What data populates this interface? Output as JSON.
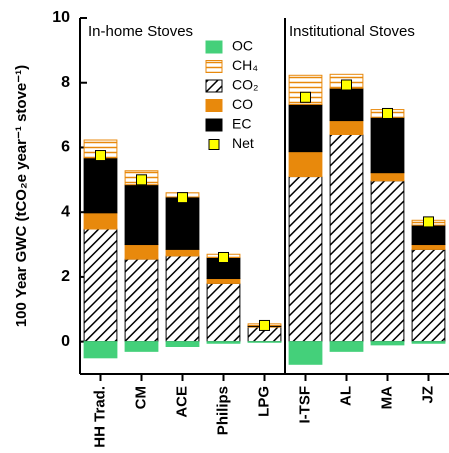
{
  "chart_data": {
    "type": "stacked_bar",
    "y_label": "100 Year GWC (tCO₂e year⁻¹ stove⁻¹)",
    "annotations": [
      "In-home Stoves",
      "Institutional Stoves"
    ],
    "categories": [
      "HH Trad.",
      "CM",
      "ACE",
      "Philips",
      "LPG",
      "I-TSF",
      "AL",
      "MA",
      "JZ"
    ],
    "series": [
      {
        "name": "OC",
        "color": "#44d07a",
        "pattern": "solid",
        "values": [
          -0.5,
          -0.3,
          -0.15,
          -0.05,
          -0.02,
          -0.7,
          -0.3,
          -0.1,
          -0.05
        ]
      },
      {
        "name": "CH₄",
        "color": "#e8890c",
        "pattern": "hlines",
        "values": [
          0.55,
          0.43,
          0.13,
          0.1,
          0.05,
          0.9,
          0.43,
          0.24,
          0.15
        ]
      },
      {
        "name": "CO₂",
        "color": "#000000",
        "pattern": "hatch",
        "values": [
          3.48,
          2.55,
          2.65,
          1.8,
          0.45,
          5.1,
          6.4,
          4.97,
          2.85
        ]
      },
      {
        "name": "CO",
        "color": "#e8890c",
        "pattern": "solid",
        "values": [
          0.5,
          0.45,
          0.2,
          0.15,
          0.02,
          0.77,
          0.43,
          0.25,
          0.15
        ]
      },
      {
        "name": "EC",
        "color": "#000000",
        "pattern": "solid",
        "values": [
          1.7,
          1.85,
          1.62,
          0.65,
          0.03,
          1.46,
          1.0,
          1.71,
          0.6
        ]
      }
    ],
    "net": {
      "name": "Net",
      "color": "#ffff00",
      "values": [
        5.75,
        5.0,
        4.45,
        2.6,
        0.5,
        7.55,
        7.93,
        7.05,
        3.7
      ]
    },
    "ylim": [
      -1,
      10
    ],
    "yticks": [
      0,
      2,
      4,
      6,
      8,
      10
    ]
  }
}
